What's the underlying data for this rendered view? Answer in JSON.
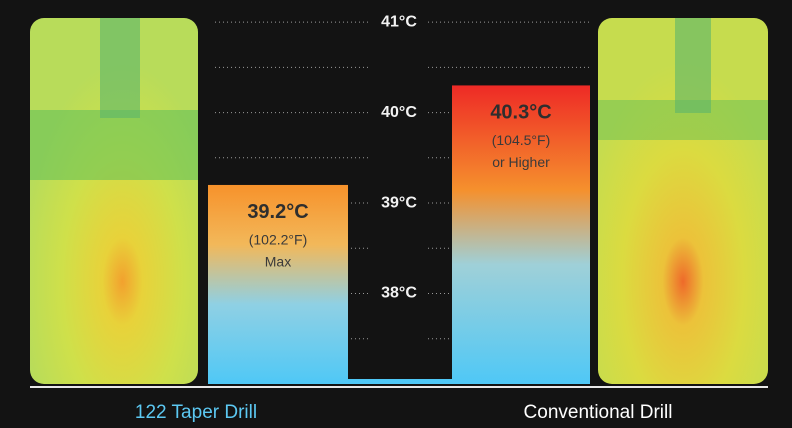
{
  "chart_data": {
    "type": "bar",
    "categories": [
      "122 Taper Drill",
      "Conventional Drill"
    ],
    "category_colors": [
      "#5cc8f2",
      "#ffffff"
    ],
    "values": [
      39.2,
      40.3
    ],
    "value_labels": [
      "39.2°C",
      "40.3°C"
    ],
    "fahrenheit_labels": [
      "(102.2°F)",
      "(104.5°F)"
    ],
    "notes": [
      "Max",
      "or Higher"
    ],
    "ylim": [
      37,
      41.2
    ],
    "yticks": [
      {
        "value": 38,
        "label": "38°C"
      },
      {
        "value": 39,
        "label": "39°C"
      },
      {
        "value": 40,
        "label": "40°C"
      },
      {
        "value": 41,
        "label": "41°C"
      }
    ],
    "minor_yticks": [
      37.5,
      38.5,
      39.5,
      40.5
    ],
    "grid": true
  }
}
